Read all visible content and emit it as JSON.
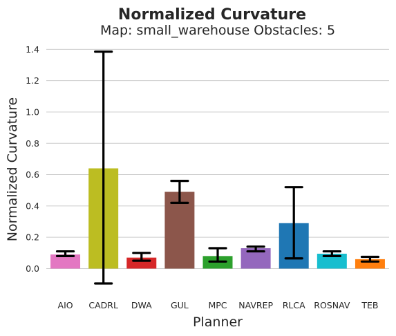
{
  "chart_data": {
    "type": "bar",
    "title": "Normalized Curvature",
    "subtitle": "Map: small_warehouse Obstacles: 5",
    "xlabel": "Planner",
    "ylabel": "Normalized Curvature",
    "categories": [
      "AIO",
      "CADRL",
      "DWA",
      "GUL",
      "MPC",
      "NAVREP",
      "RLCA",
      "ROSNAV",
      "TEB"
    ],
    "values": [
      0.09,
      0.64,
      0.07,
      0.49,
      0.08,
      0.13,
      0.29,
      0.095,
      0.06
    ],
    "error_low": [
      0.08,
      -0.095,
      0.05,
      0.42,
      0.045,
      0.11,
      0.065,
      0.08,
      0.045
    ],
    "error_high": [
      0.11,
      1.385,
      0.1,
      0.56,
      0.13,
      0.14,
      0.52,
      0.11,
      0.075
    ],
    "colors": [
      "#e377c2",
      "#bcbd22",
      "#d62728",
      "#8c564b",
      "#2ca02c",
      "#9467bd",
      "#1f77b4",
      "#17becf",
      "#ff7f0e"
    ],
    "ylim": [
      -0.17,
      1.45
    ],
    "yticks": [
      0.0,
      0.2,
      0.4,
      0.6,
      0.8,
      1.0,
      1.2,
      1.4
    ],
    "ytick_labels": [
      "0.0",
      "0.2",
      "0.4",
      "0.6",
      "0.8",
      "1.0",
      "1.2",
      "1.4"
    ],
    "grid": "horizontal",
    "legend": "none"
  }
}
